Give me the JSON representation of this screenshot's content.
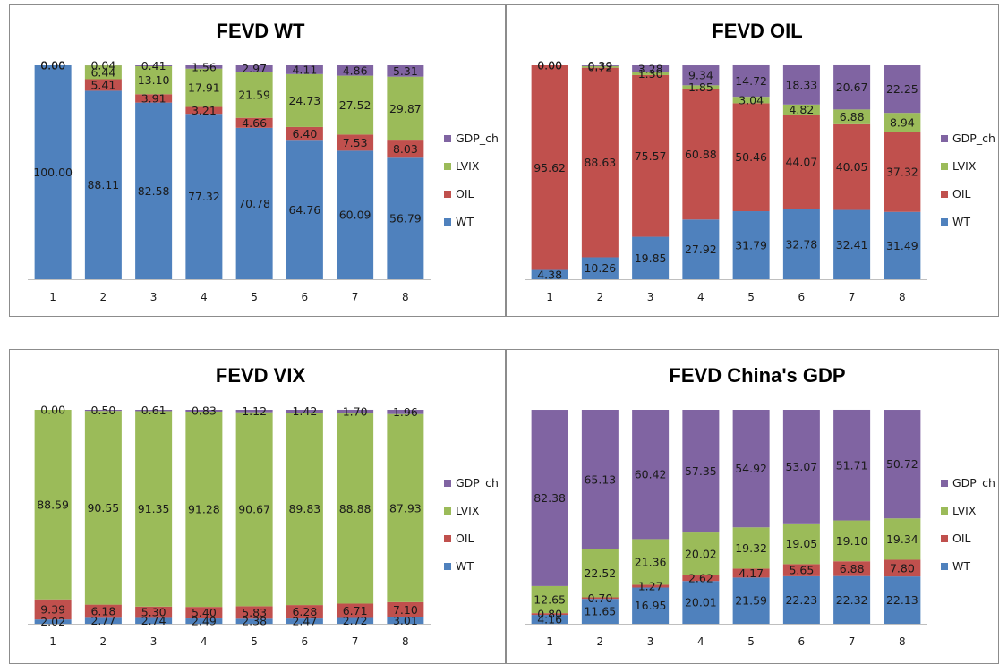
{
  "chart_data": [
    {
      "type": "bar",
      "stacked": true,
      "title": "FEVD WT",
      "categories": [
        "1",
        "2",
        "3",
        "4",
        "5",
        "6",
        "7",
        "8"
      ],
      "ylim": [
        0,
        100
      ],
      "legend": "right",
      "series": [
        {
          "name": "WT",
          "color": "#4f81bd",
          "values": [
            100.0,
            88.11,
            82.58,
            77.32,
            70.78,
            64.76,
            60.09,
            56.79
          ]
        },
        {
          "name": "OIL",
          "color": "#c0504d",
          "values": [
            0.0,
            5.41,
            3.91,
            3.21,
            4.66,
            6.4,
            7.53,
            8.03
          ]
        },
        {
          "name": "LVIX",
          "color": "#9bbb59",
          "values": [
            0.0,
            6.44,
            13.1,
            17.91,
            21.59,
            24.73,
            27.52,
            29.87
          ]
        },
        {
          "name": "GDP_ch",
          "color": "#8064a2",
          "values": [
            0.0,
            0.04,
            0.41,
            1.56,
            2.97,
            4.11,
            4.86,
            5.31
          ]
        }
      ]
    },
    {
      "type": "bar",
      "stacked": true,
      "title": "FEVD OIL",
      "categories": [
        "1",
        "2",
        "3",
        "4",
        "5",
        "6",
        "7",
        "8"
      ],
      "ylim": [
        0,
        100
      ],
      "legend": "right",
      "series": [
        {
          "name": "WT",
          "color": "#4f81bd",
          "values": [
            4.38,
            10.26,
            19.85,
            27.92,
            31.79,
            32.78,
            32.41,
            31.49
          ]
        },
        {
          "name": "OIL",
          "color": "#c0504d",
          "values": [
            95.62,
            88.63,
            75.57,
            60.88,
            50.46,
            44.07,
            40.05,
            37.32
          ]
        },
        {
          "name": "LVIX",
          "color": "#9bbb59",
          "values": [
            0.0,
            0.72,
            1.3,
            1.85,
            3.04,
            4.82,
            6.88,
            8.94
          ]
        },
        {
          "name": "GDP_ch",
          "color": "#8064a2",
          "values": [
            0.0,
            0.39,
            3.28,
            9.34,
            14.72,
            18.33,
            20.67,
            22.25
          ]
        }
      ]
    },
    {
      "type": "bar",
      "stacked": true,
      "title": "FEVD VIX",
      "categories": [
        "1",
        "2",
        "3",
        "4",
        "5",
        "6",
        "7",
        "8"
      ],
      "ylim": [
        0,
        100
      ],
      "legend": "right",
      "series": [
        {
          "name": "WT",
          "color": "#4f81bd",
          "values": [
            2.02,
            2.77,
            2.74,
            2.49,
            2.38,
            2.47,
            2.72,
            3.01
          ]
        },
        {
          "name": "OIL",
          "color": "#c0504d",
          "values": [
            9.39,
            6.18,
            5.3,
            5.4,
            5.83,
            6.28,
            6.71,
            7.1
          ]
        },
        {
          "name": "LVIX",
          "color": "#9bbb59",
          "values": [
            88.59,
            90.55,
            91.35,
            91.28,
            90.67,
            89.83,
            88.88,
            87.93
          ]
        },
        {
          "name": "GDP_ch",
          "color": "#8064a2",
          "values": [
            0.0,
            0.5,
            0.61,
            0.83,
            1.12,
            1.42,
            1.7,
            1.96
          ]
        }
      ]
    },
    {
      "type": "bar",
      "stacked": true,
      "title": "FEVD China's GDP",
      "categories": [
        "1",
        "2",
        "3",
        "4",
        "5",
        "6",
        "7",
        "8"
      ],
      "ylim": [
        0,
        100
      ],
      "legend": "right",
      "series": [
        {
          "name": "WT",
          "color": "#4f81bd",
          "values": [
            4.16,
            11.65,
            16.95,
            20.01,
            21.59,
            22.23,
            22.32,
            22.13
          ]
        },
        {
          "name": "OIL",
          "color": "#c0504d",
          "values": [
            0.8,
            0.7,
            1.27,
            2.62,
            4.17,
            5.65,
            6.88,
            7.8
          ]
        },
        {
          "name": "LVIX",
          "color": "#9bbb59",
          "values": [
            12.65,
            22.52,
            21.36,
            20.02,
            19.32,
            19.05,
            19.1,
            19.34
          ]
        },
        {
          "name": "GDP_ch",
          "color": "#8064a2",
          "values": [
            82.38,
            65.13,
            60.42,
            57.35,
            54.92,
            53.07,
            51.71,
            50.72
          ]
        }
      ]
    }
  ]
}
